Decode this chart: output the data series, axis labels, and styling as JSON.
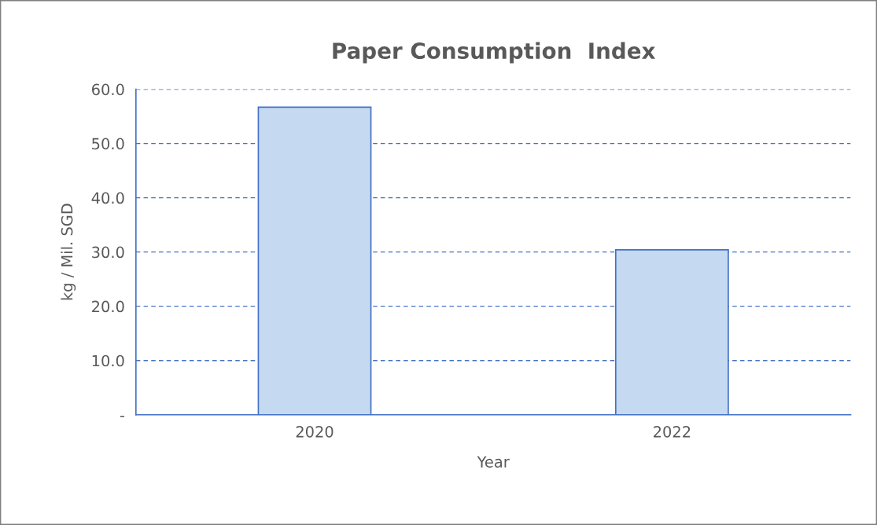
{
  "chart_data": {
    "type": "bar",
    "title": "Paper Consumption  Index",
    "xlabel": "Year",
    "ylabel": "kg / Mil. SGD",
    "categories": [
      "2020",
      "2022"
    ],
    "values": [
      56.7,
      30.4
    ],
    "color": "#c5d9f1",
    "ylim": [
      0,
      60
    ],
    "yticks": [
      {
        "value": 0,
        "label": "-"
      },
      {
        "value": 10,
        "label": "10.0"
      },
      {
        "value": 20,
        "label": "20.0"
      },
      {
        "value": 30,
        "label": "30.0"
      },
      {
        "value": 40,
        "label": "40.0"
      },
      {
        "value": 50,
        "label": "50.0"
      },
      {
        "value": 60,
        "label": "60.0"
      }
    ],
    "grid": "y"
  }
}
